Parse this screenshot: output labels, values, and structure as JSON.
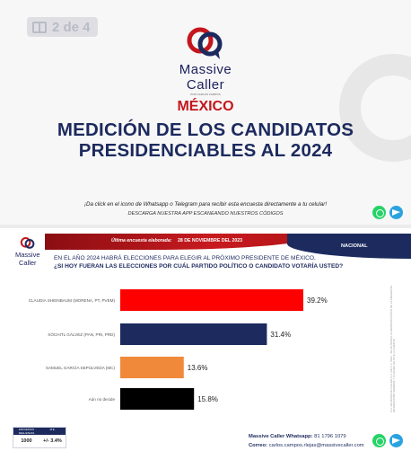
{
  "page_indicator": "2 de 4",
  "top": {
    "brand_name_1": "Massive",
    "brand_name_2": "Caller",
    "brand_sub": "POR CARLOS CAMPOS",
    "country": "MÉXICO",
    "title_line1": "MEDICIÓN DE LOS CANDIDATOS",
    "title_line2": "PRESIDENCIABLES AL 2024",
    "cta_line1": "¡Da click en el icono de Whatsapp o Telegram para recibir esta encuesta directamente a tu celular!",
    "cta_line2": "DESCARGA NUESTRA APP ESCANEANDO NUESTROS CÓDIGOS"
  },
  "bottom": {
    "brand_name_1": "Massive",
    "brand_name_2": "Caller",
    "banner_date_label": "Última encuesta elaborada:",
    "banner_date": "28 DE NOVIEMBRE DEL 2023",
    "banner_region": "NACIONAL",
    "question_line1": "EN EL AÑO 2024 HABRÁ ELECCIONES PARA ELEGIR AL PRÓXIMO PRESIDENTE DE MÉXICO,",
    "question_line2": "¿SI HOY FUERAN LAS ELECCIONES POR CUÁL PARTIDO POLÍTICO O CANDIDATO VOTARÍA USTED?",
    "side_note": "S.A. DE MASSIVE CALLER S.A. DE C.V. 2023 · SE AUTORIZA LA REPRODUCCIÓN DE LA PRESENTE INFORMACIÓN SIEMPRE Y CUANDO SE CITE LA FUENTE",
    "stats": {
      "header_1": "ENCUESTAS REALIZADAS",
      "header_2": "M.E.",
      "value_1": "1000",
      "value_2": "+/- 3.4%"
    },
    "contact_label_1": "Massive Caller Whatsapp:",
    "contact_value_1": "81 1796 1079",
    "contact_label_2": "Correo:",
    "contact_value_2": "carlos.campos.rlejas@massivecaller.com"
  },
  "colors": {
    "navy": "#1c2a5e",
    "red": "#c4161c",
    "whatsapp": "#25d366",
    "telegram": "#2aa3e0"
  },
  "icons": [
    "whatsapp-icon",
    "telegram-icon",
    "whatsapp-icon",
    "telegram-icon"
  ],
  "chart_data": {
    "type": "bar",
    "orientation": "horizontal",
    "categories": [
      "CLAUDIA SHEINBAUM (MORENA, PT, PVEM)",
      "XÓCHITL GÁLVEZ (PAN, PRI, PRD)",
      "SAMUEL GARCÍA SEPÚLVEDA (MC)",
      "Aún no decide"
    ],
    "values": [
      39.2,
      31.4,
      13.6,
      15.8
    ],
    "value_labels": [
      "39.2%",
      "31.4%",
      "13.6%",
      "15.8%"
    ],
    "colors": [
      "#ff0000",
      "#1c2a5e",
      "#f08a3a",
      "#000000"
    ],
    "grid": false
  }
}
